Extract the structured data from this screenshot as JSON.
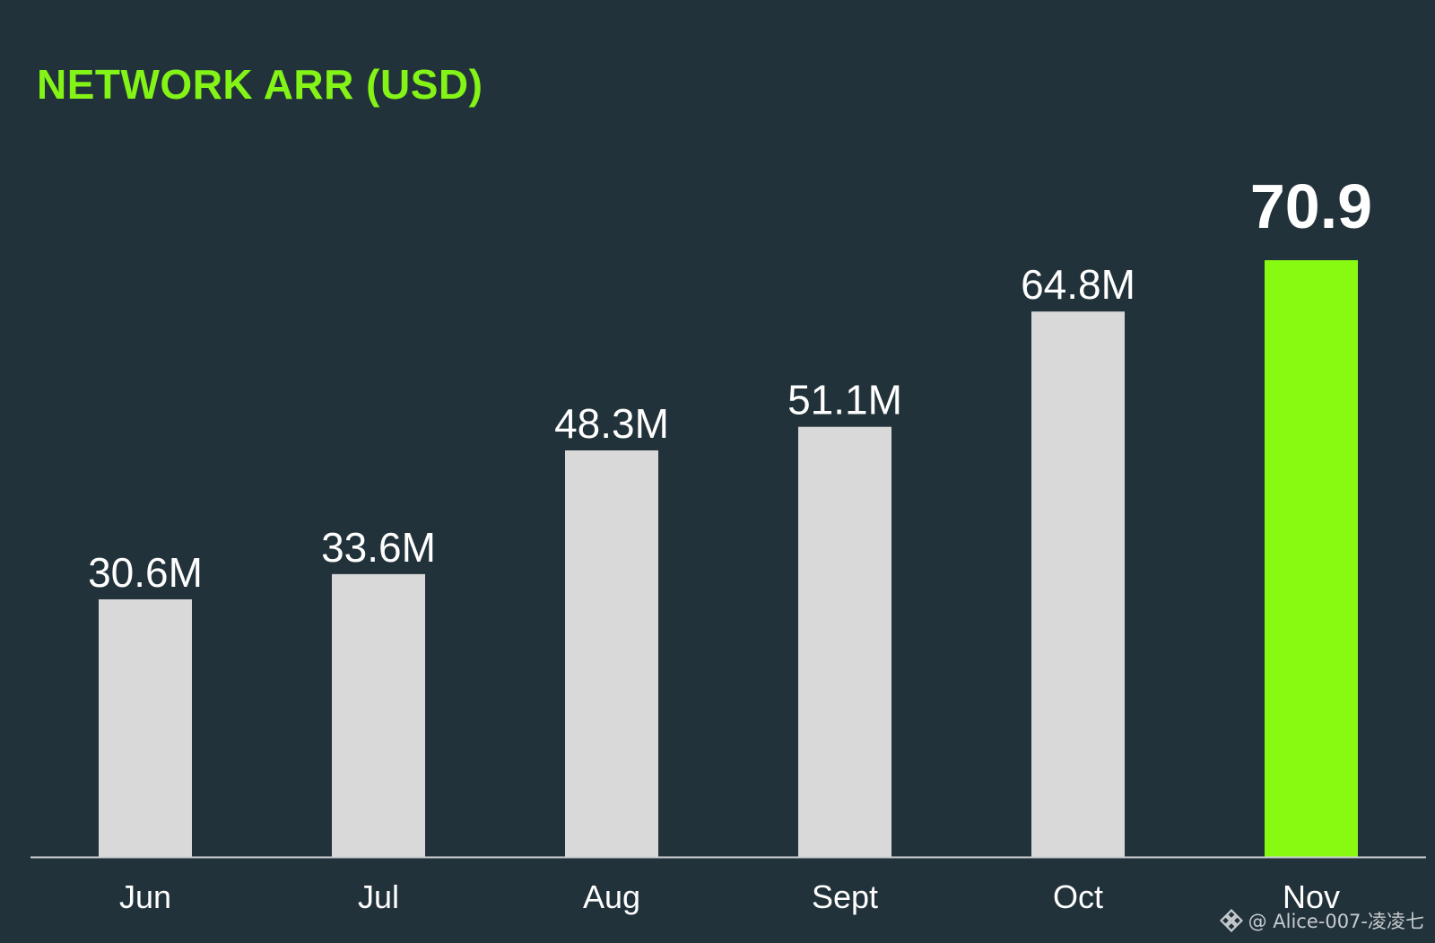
{
  "colors": {
    "background": "#22323a",
    "title": "#84f416",
    "bar_default": "#d9d9d9",
    "bar_highlight": "#88fa12",
    "label_text": "#ffffff",
    "axis_line": "#d0d4d6"
  },
  "watermark": {
    "icon": "binance-logo-icon",
    "text": "@ Alice-007-凌凌七"
  },
  "chart_data": {
    "type": "bar",
    "title": "NETWORK ARR (USD)",
    "xlabel": "",
    "ylabel": "",
    "categories": [
      "Jun",
      "Jul",
      "Aug",
      "Sept",
      "Oct",
      "Nov"
    ],
    "values": [
      30.6,
      33.6,
      48.3,
      51.1,
      64.8,
      70.9
    ],
    "value_labels": [
      "30.6M",
      "33.6M",
      "48.3M",
      "51.1M",
      "64.8M",
      "70.9"
    ],
    "highlight": "Nov",
    "ylim": [
      0,
      70.9
    ],
    "grid": false,
    "legend": "none"
  }
}
